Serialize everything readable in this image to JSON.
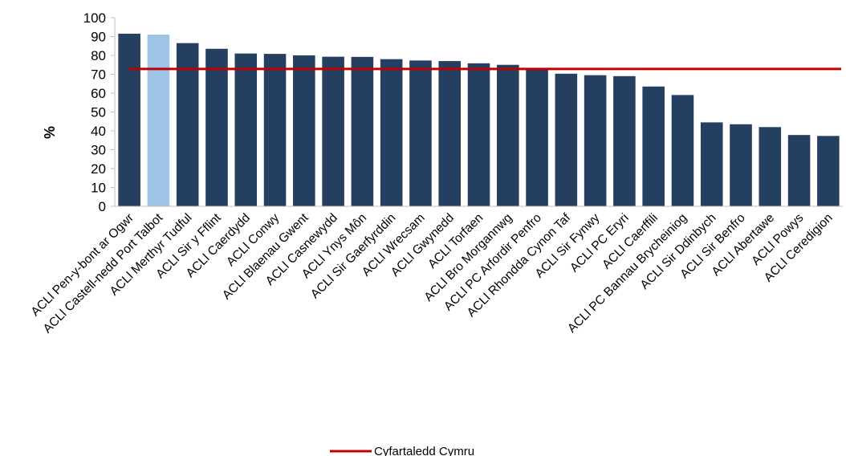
{
  "chart_data": {
    "type": "bar",
    "title": "",
    "xlabel": "",
    "ylabel": "%",
    "ylim": [
      0,
      100
    ],
    "yticks": [
      0,
      10,
      20,
      30,
      40,
      50,
      60,
      70,
      80,
      90,
      100
    ],
    "grid": false,
    "legend_position": "bottom",
    "categories": [
      "ACLl Pen-y-bont ar Ogwr",
      "ACLl Castell-nedd Port Talbot",
      "ACLl Merthyr Tudful",
      "ACLl Sir y Fflint",
      "ACLl Caerdydd",
      "ACLl Conwy",
      "ACLl Blaenau Gwent",
      "ACLl Casnewydd",
      "ACLl Ynys Môn",
      "ACLl Sir Gaerfyrddin",
      "ACLl Wrecsam",
      "ACLl Gwynedd",
      "ACLl Torfaen",
      "ACLl Bro Morgannwg",
      "ACLl PC Arfordir Penfro",
      "ACLl Rhondda Cynon Taf",
      "ACLl Sir Fynwy",
      "ACLl PC Eryri",
      "ACLl Caerffili",
      "ACLl PC Bannau Brycheiniog",
      "ACLl Sir Ddinbych",
      "ACLl Sir Benfro",
      "ACLl Abertawe",
      "ACLl Powys",
      "ACLl Ceredigion"
    ],
    "values": [
      91.5,
      91,
      86.5,
      83.5,
      81,
      80.8,
      80,
      79.3,
      79.2,
      78,
      77.3,
      77,
      75.8,
      75,
      73,
      70.3,
      69.5,
      69,
      63.5,
      59,
      44.5,
      43.5,
      42,
      37.8,
      37.3
    ],
    "highlight_index": 1,
    "bar_color": "#243f60",
    "highlight_color": "#9dc3e6",
    "reference_line": {
      "name": "Cyfartaledd Cymru",
      "value": 72.8,
      "color": "#c00000"
    }
  }
}
